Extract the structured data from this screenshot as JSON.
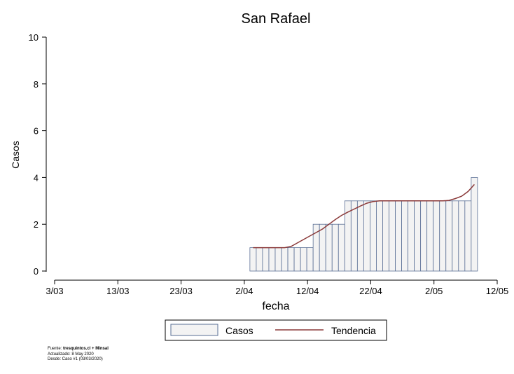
{
  "chart_data": {
    "type": "bar",
    "title": "San Rafael",
    "xlabel": "fecha",
    "ylabel": "Casos",
    "ylim": [
      0,
      10
    ],
    "yticks": [
      0,
      2,
      4,
      6,
      8,
      10
    ],
    "xlim": [
      "2020-03-03",
      "2020-05-12"
    ],
    "xtick_labels": [
      "3/03",
      "13/03",
      "23/03",
      "2/04",
      "12/04",
      "22/04",
      "2/05",
      "12/05"
    ],
    "grid": false,
    "legend_position": "bottom",
    "legend": [
      "Casos",
      "Tendencia"
    ],
    "colors": {
      "bar_fill": "#f3f3f3",
      "bar_edge": "#5a6f95",
      "trend": "#8b3a3a"
    },
    "start_date": "2020-04-03",
    "series": [
      {
        "name": "Casos",
        "type": "bar",
        "values": [
          1,
          1,
          1,
          1,
          1,
          1,
          1,
          1,
          1,
          1,
          2,
          2,
          2,
          2,
          2,
          3,
          3,
          3,
          3,
          3,
          3,
          3,
          3,
          3,
          3,
          3,
          3,
          3,
          3,
          3,
          3,
          3,
          3,
          3,
          3,
          4
        ]
      },
      {
        "name": "Tendencia",
        "type": "line",
        "values": [
          1,
          1,
          1,
          1,
          1,
          1,
          1.05,
          1.2,
          1.35,
          1.5,
          1.65,
          1.8,
          2.0,
          2.2,
          2.38,
          2.52,
          2.65,
          2.78,
          2.9,
          2.97,
          3,
          3,
          3,
          3,
          3,
          3,
          3,
          3,
          3,
          3,
          3,
          3.02,
          3.1,
          3.2,
          3.4,
          3.7
        ]
      }
    ]
  },
  "footer": {
    "source_prefix": "Fuente: ",
    "source_bold": "tresquintos.cl + Minsal",
    "updated": "Actualizado: 8 May 2020",
    "since": "Desde: Caso #1  (03/03/2020)"
  }
}
